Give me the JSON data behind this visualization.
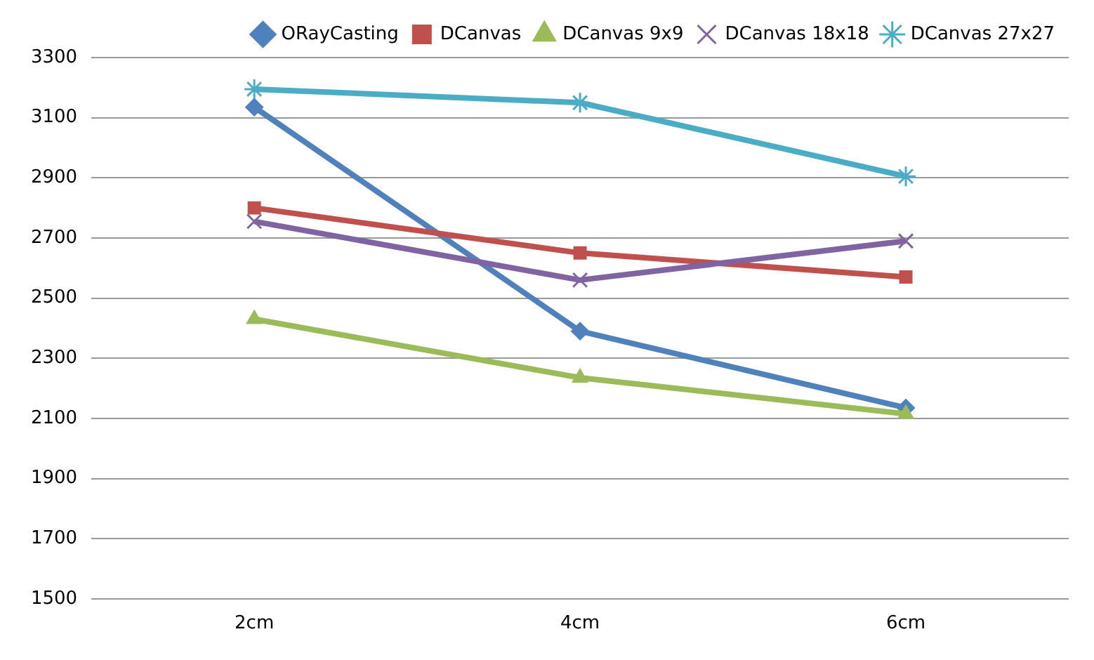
{
  "chart_data": {
    "type": "line",
    "categories": [
      "2cm",
      "4cm",
      "6cm"
    ],
    "series": [
      {
        "name": "ORayCasting",
        "color": "#4f81bd",
        "marker": "diamond",
        "values": [
          3135,
          2390,
          2135
        ]
      },
      {
        "name": "DCanvas",
        "color": "#c0504d",
        "marker": "square",
        "values": [
          2800,
          2650,
          2570
        ]
      },
      {
        "name": "DCanvas 9x9",
        "color": "#9bbb59",
        "marker": "triangle",
        "values": [
          2430,
          2235,
          2115
        ]
      },
      {
        "name": "DCanvas 18x18",
        "color": "#8064a2",
        "marker": "cross",
        "values": [
          2755,
          2560,
          2690
        ]
      },
      {
        "name": "DCanvas 27x27",
        "color": "#4bacc6",
        "marker": "cross",
        "values": [
          3195,
          3150,
          2905
        ]
      }
    ],
    "ylim": [
      1500,
      3300
    ],
    "yticks": [
      1500,
      1700,
      1900,
      2100,
      2300,
      2500,
      2700,
      2900,
      3100,
      3300
    ],
    "grid": "y",
    "legend": "top",
    "line_style": "solid"
  }
}
